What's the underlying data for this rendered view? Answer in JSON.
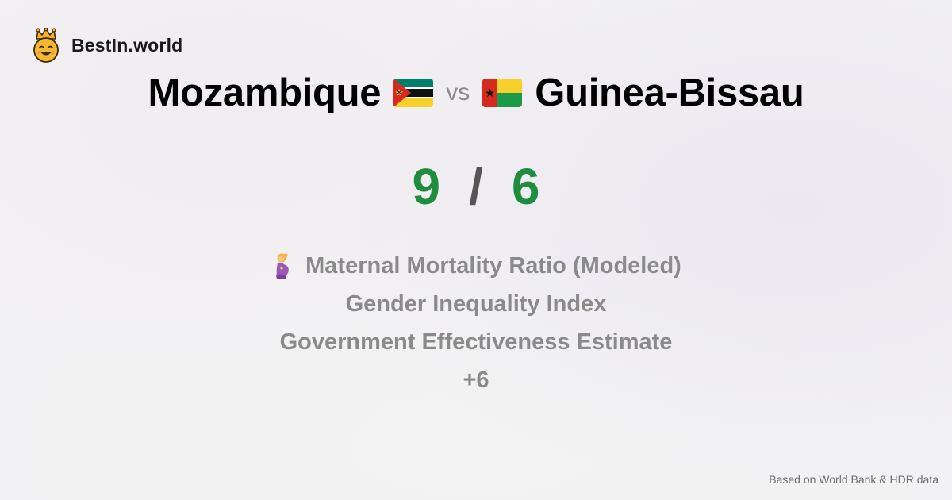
{
  "brand": {
    "name": "BestIn.world",
    "logo_icon": "smiling-crown-face-icon"
  },
  "comparison": {
    "country_a": "Mozambique",
    "country_a_flag_icon": "mozambique-flag-icon",
    "vs_label": "vs",
    "country_b": "Guinea-Bissau",
    "country_b_flag_icon": "guinea-bissau-flag-icon"
  },
  "score": {
    "a": "9",
    "separator": "/",
    "b": "6",
    "color": "#1e8e3e"
  },
  "metrics": [
    {
      "label": "Maternal Mortality Ratio (Modeled)",
      "icon": "pregnant-woman-icon"
    },
    {
      "label": "Gender Inequality Index"
    },
    {
      "label": "Government Effectiveness Estimate"
    },
    {
      "label": "+6"
    }
  ],
  "footer": {
    "source": "Based on World Bank & HDR data"
  }
}
